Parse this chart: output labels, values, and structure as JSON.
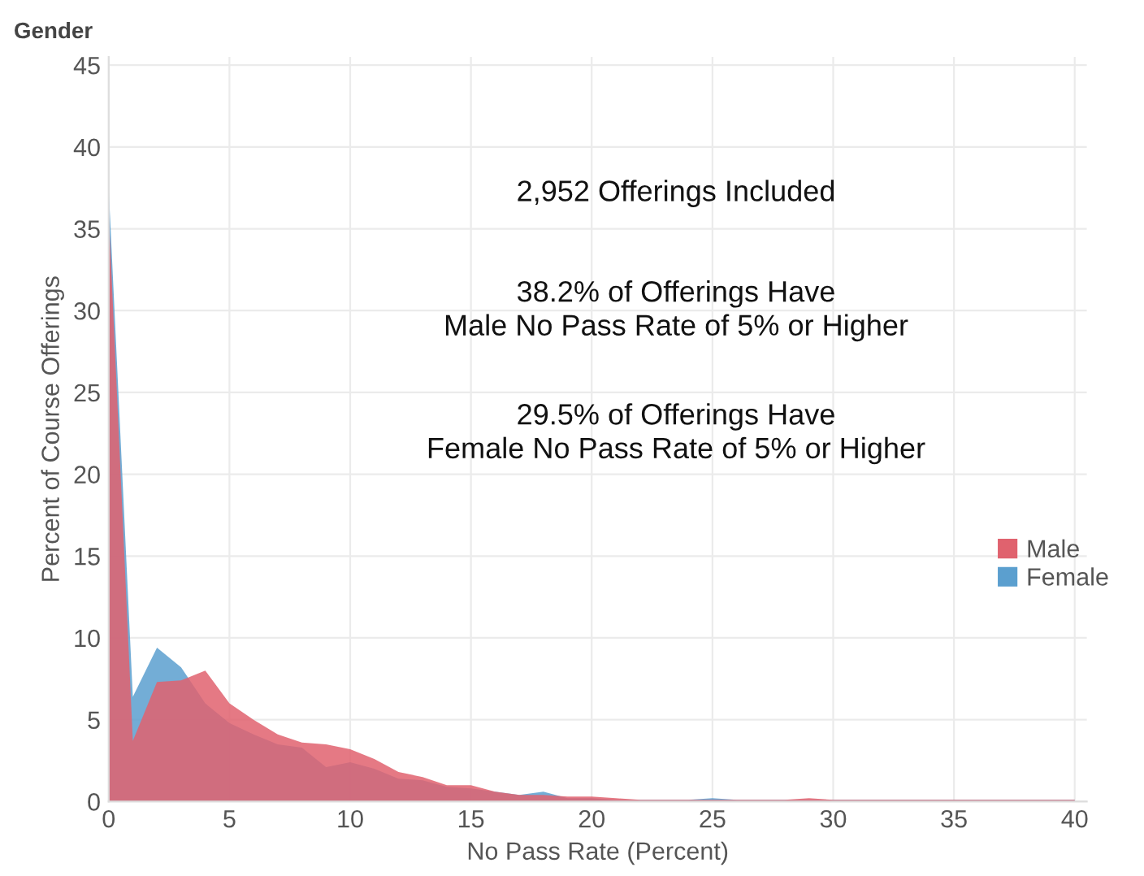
{
  "chart_data": {
    "type": "area",
    "title": "Gender",
    "xlabel": "No Pass Rate (Percent)",
    "ylabel": "Percent of Course Offerings",
    "x": [
      0,
      1,
      2,
      3,
      4,
      5,
      6,
      7,
      8,
      9,
      10,
      11,
      12,
      13,
      14,
      15,
      16,
      17,
      18,
      19,
      20,
      21,
      22,
      23,
      24,
      25,
      26,
      27,
      28,
      29,
      30,
      31,
      32,
      33,
      34,
      35,
      36,
      37,
      38,
      39,
      40
    ],
    "series": [
      {
        "name": "Female",
        "color": "#5b9fcf",
        "values": [
          37.5,
          6.4,
          9.4,
          8.2,
          6.0,
          4.8,
          4.1,
          3.5,
          3.3,
          2.1,
          2.4,
          2.0,
          1.4,
          1.3,
          0.9,
          0.8,
          0.6,
          0.4,
          0.6,
          0.2,
          0.2,
          0.1,
          0.1,
          0.1,
          0.1,
          0.2,
          0.1,
          0.1,
          0.1,
          0.1,
          0.1,
          0.1,
          0.1,
          0.1,
          0.1,
          0.1,
          0.1,
          0.1,
          0.1,
          0.1,
          0.1
        ]
      },
      {
        "name": "Male",
        "color": "#e0626e",
        "values": [
          36.0,
          3.7,
          7.3,
          7.4,
          8.0,
          6.0,
          5.0,
          4.1,
          3.6,
          3.5,
          3.2,
          2.6,
          1.8,
          1.5,
          1.0,
          1.0,
          0.6,
          0.4,
          0.4,
          0.3,
          0.3,
          0.2,
          0.1,
          0.1,
          0.1,
          0.1,
          0.1,
          0.1,
          0.1,
          0.2,
          0.1,
          0.1,
          0.1,
          0.1,
          0.1,
          0.1,
          0.1,
          0.1,
          0.1,
          0.1,
          0.1
        ]
      }
    ],
    "xlim": [
      0,
      40.5
    ],
    "xticks": [
      0,
      5,
      10,
      15,
      20,
      25,
      30,
      35,
      40
    ],
    "ylim": [
      0,
      45.5
    ],
    "yticks": [
      0,
      5,
      10,
      15,
      20,
      25,
      30,
      35,
      40,
      45
    ],
    "grid": true,
    "legend": "right",
    "annotations": [
      "2,952 Offerings Included",
      "38.2% of Offerings Have\nMale No Pass Rate of 5% or Higher",
      "29.5% of Offerings Have\nFemale No Pass Rate of 5% or Higher"
    ]
  }
}
